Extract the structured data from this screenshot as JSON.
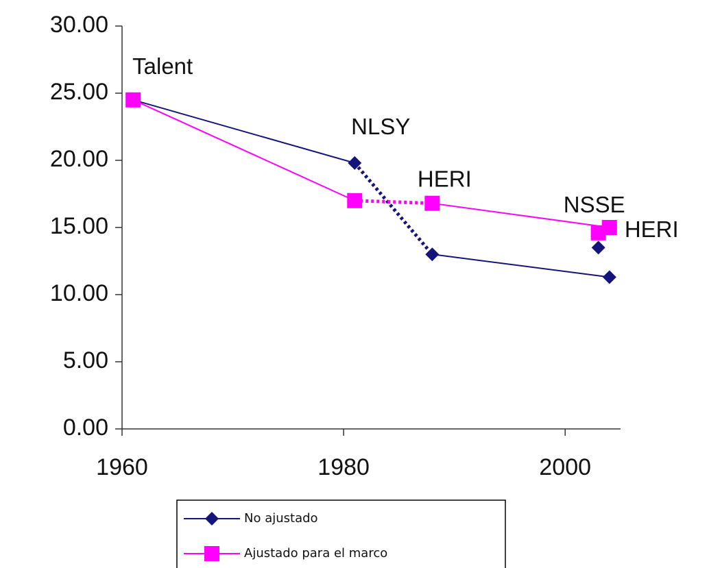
{
  "chart_data": {
    "type": "line",
    "x": [
      1961,
      1981,
      1988,
      2003,
      2004
    ],
    "xlim": [
      1960,
      2005
    ],
    "xticks": [
      1960,
      1980,
      2000
    ],
    "ylim": [
      0,
      30
    ],
    "yticks": [
      {
        "value": 0,
        "label": "0.00"
      },
      {
        "value": 5,
        "label": "5.00"
      },
      {
        "value": 10,
        "label": "10.00"
      },
      {
        "value": 15,
        "label": "15.00"
      },
      {
        "value": 20,
        "label": "20.00"
      },
      {
        "value": 25,
        "label": "25.00"
      },
      {
        "value": 30,
        "label": "30.00"
      }
    ],
    "series": [
      {
        "name": "No ajustado",
        "color": "#14147a",
        "marker": "diamond",
        "values": [
          24.5,
          19.8,
          13.0,
          13.5,
          11.3
        ],
        "links": [
          [
            0,
            1,
            "solid"
          ],
          [
            1,
            2,
            "dotted"
          ],
          [
            2,
            4,
            "solid"
          ]
        ]
      },
      {
        "name": "Ajustado para el marco",
        "color": "#ff00ff",
        "marker": "square",
        "values": [
          24.5,
          17.0,
          16.8,
          14.6,
          15.0
        ],
        "links": [
          [
            0,
            1,
            "solid"
          ],
          [
            1,
            2,
            "dotted"
          ],
          [
            2,
            4,
            "solid"
          ]
        ]
      }
    ],
    "annotations": [
      {
        "text": "Talent",
        "series": 1,
        "index": 0
      },
      {
        "text": "NLSY",
        "series": 0,
        "index": 1
      },
      {
        "text": "HERI",
        "series": 1,
        "index": 2
      },
      {
        "text": "NSSE",
        "series": 1,
        "index": 3
      },
      {
        "text": "HERI",
        "series": 1,
        "index": 4
      }
    ]
  }
}
